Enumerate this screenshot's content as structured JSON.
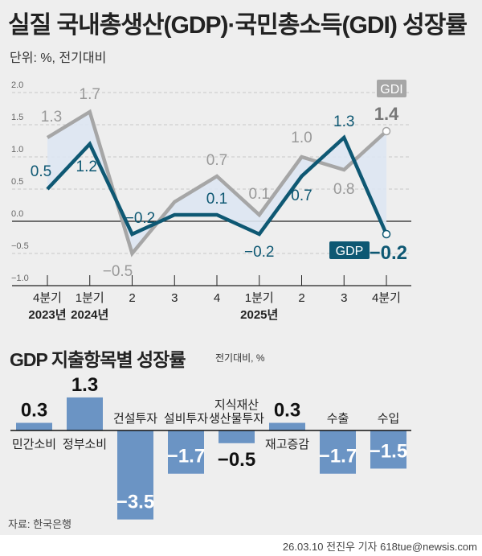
{
  "title": "실질 국내총생산(GDP)·국민총소득(GDI) 성장률",
  "unit": "단위: %, 전기대비",
  "colors": {
    "gdi": "#a6a6a6",
    "gdp": "#0e5873",
    "fill": "#dde6f2",
    "bar": "#6b94c4",
    "background": "#eeeeee"
  },
  "chart_data": [
    {
      "type": "line",
      "categories": [
        [
          "4분기",
          "2023년"
        ],
        [
          "1분기",
          "2024년"
        ],
        [
          "2",
          ""
        ],
        [
          "3",
          ""
        ],
        [
          "4",
          ""
        ],
        [
          "1분기",
          "2025년"
        ],
        [
          "2",
          ""
        ],
        [
          "3",
          ""
        ],
        [
          "4분기",
          ""
        ]
      ],
      "ylim": [
        -1.0,
        2.0
      ],
      "yticks": [
        "2.0",
        "1.5",
        "1.0",
        "0.5",
        "0.0",
        "−0.5",
        "−1.0"
      ],
      "grid": true,
      "series": [
        {
          "name": "GDI",
          "values": [
            1.3,
            1.7,
            -0.5,
            0.3,
            0.7,
            0.1,
            1.0,
            0.8,
            1.4
          ],
          "labels": [
            "1.3",
            "1.7",
            "−0.5",
            "",
            "0.7",
            "0.1",
            "1.0",
            "0.8",
            "1.4"
          ]
        },
        {
          "name": "GDP",
          "values": [
            0.5,
            1.2,
            -0.2,
            0.1,
            0.1,
            -0.2,
            0.7,
            1.3,
            -0.2
          ],
          "labels": [
            "0.5",
            "1.2",
            "−0.2",
            "",
            "0.1",
            "−0.2",
            "0.7",
            "1.3",
            "−0.2"
          ]
        }
      ]
    },
    {
      "type": "bar",
      "title": "GDP 지출항목별 성장률",
      "unit": "전기대비, %",
      "categories": [
        [
          "민간소비"
        ],
        [
          "정부소비"
        ],
        [
          "건설투자"
        ],
        [
          "설비투자"
        ],
        [
          "지식재산",
          "생산물투자"
        ],
        [
          "재고증감"
        ],
        [
          "수출"
        ],
        [
          "수입"
        ]
      ],
      "values": [
        0.3,
        1.3,
        -3.5,
        -1.7,
        -0.5,
        0.3,
        -1.7,
        -1.5
      ],
      "labels": [
        "0.3",
        "1.3",
        "−3.5",
        "−1.7",
        "−0.5",
        "0.3",
        "−1.7",
        "−1.5"
      ]
    }
  ],
  "source": "자료: 한국은행",
  "credit": "26.03.10 전진우 기자 618tue@newsis.com"
}
